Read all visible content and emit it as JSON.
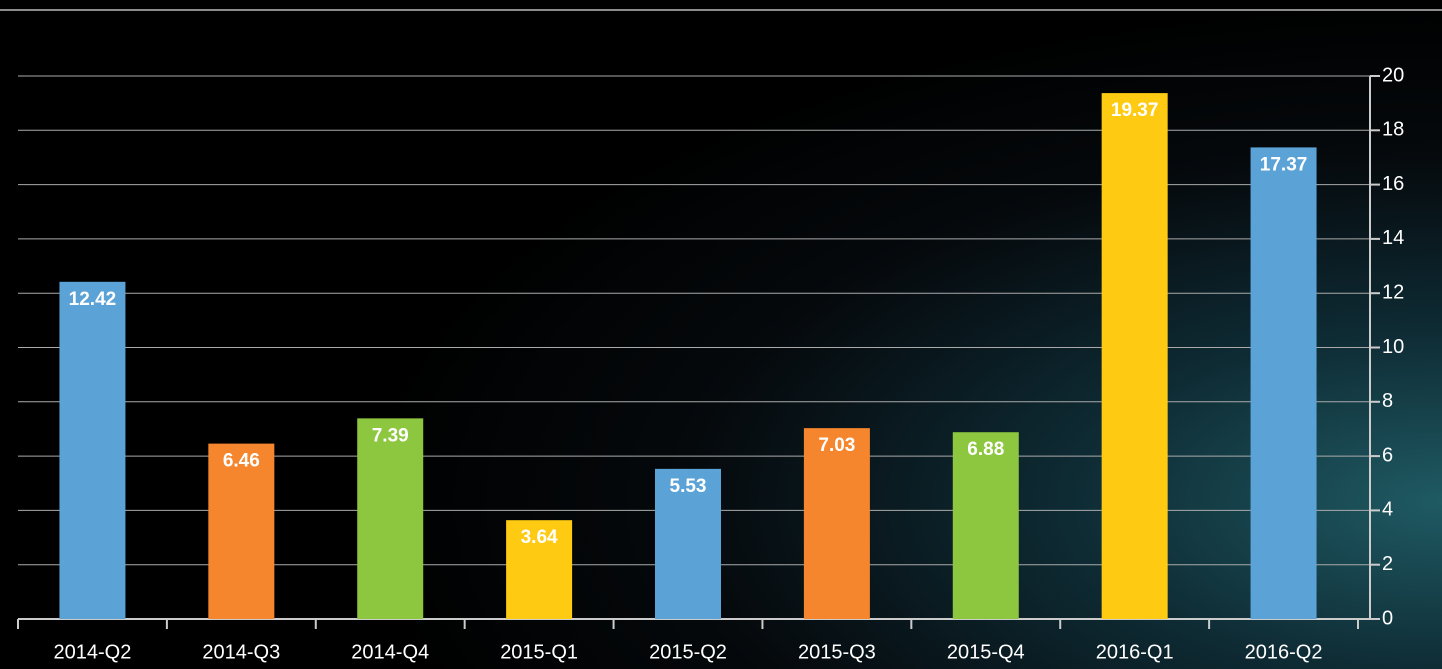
{
  "chart_data": {
    "type": "bar",
    "categories": [
      "2014-Q2",
      "2014-Q3",
      "2014-Q4",
      "2015-Q1",
      "2015-Q2",
      "2015-Q3",
      "2015-Q4",
      "2016-Q1",
      "2016-Q2"
    ],
    "values": [
      12.42,
      6.46,
      7.39,
      3.64,
      5.53,
      7.03,
      6.88,
      19.37,
      17.37
    ],
    "colors": [
      "#5ba3d6",
      "#f5862e",
      "#8dc63f",
      "#fecb12",
      "#5ba3d6",
      "#f5862e",
      "#8dc63f",
      "#fecb12",
      "#5ba3d6"
    ],
    "ylim": [
      0,
      20
    ],
    "yticks": [
      0,
      2,
      4,
      6,
      8,
      10,
      12,
      14,
      16,
      18,
      20
    ],
    "grid": true
  }
}
